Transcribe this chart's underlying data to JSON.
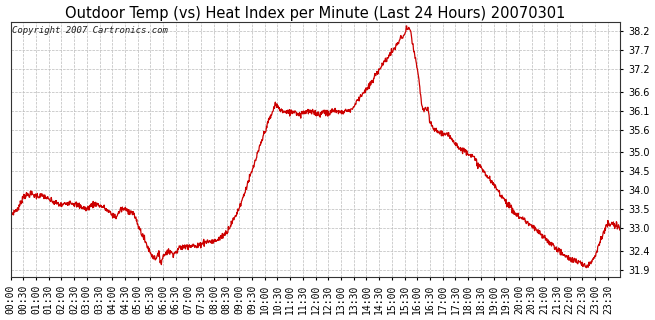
{
  "title": "Outdoor Temp (vs) Heat Index per Minute (Last 24 Hours) 20070301",
  "copyright": "Copyright 2007 Cartronics.com",
  "line_color": "#cc0000",
  "bg_color": "#ffffff",
  "grid_color": "#bbbbbb",
  "yticks": [
    31.9,
    32.4,
    33.0,
    33.5,
    34.0,
    34.5,
    35.0,
    35.6,
    36.1,
    36.6,
    37.2,
    37.7,
    38.2
  ],
  "ylim": [
    31.7,
    38.45
  ],
  "title_fontsize": 10.5,
  "tick_fontsize": 7,
  "copyright_fontsize": 6.5
}
